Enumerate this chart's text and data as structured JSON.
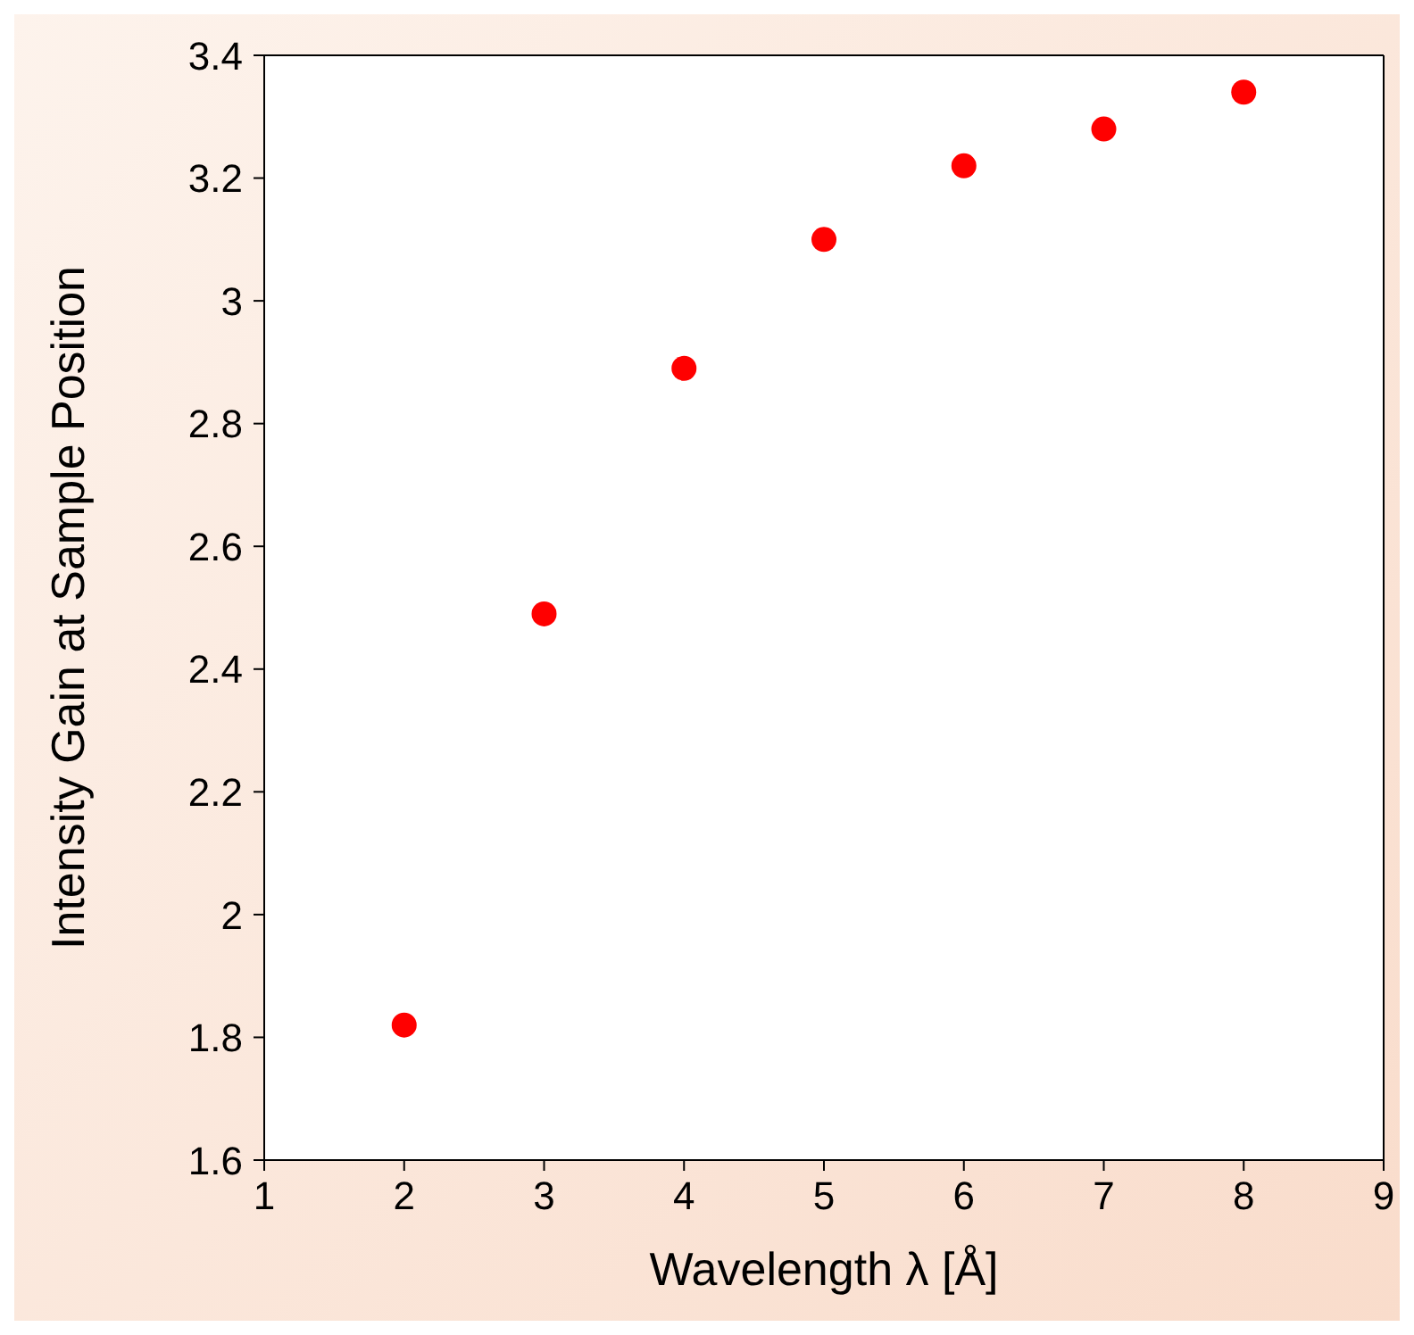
{
  "chart_data": {
    "type": "scatter",
    "xlabel": "Wavelength λ [Å]",
    "ylabel": "Intensity Gain at Sample Position",
    "x": [
      2,
      3,
      4,
      5,
      6,
      7,
      8
    ],
    "series": [
      {
        "color": "#ff0000",
        "values": [
          1.82,
          2.49,
          2.89,
          3.1,
          3.22,
          3.28,
          3.34
        ]
      }
    ],
    "xlim": [
      1,
      9
    ],
    "xticks": [
      1,
      2,
      3,
      4,
      5,
      6,
      7,
      8,
      9
    ],
    "ylim": [
      1.6,
      3.4
    ],
    "yticks": [
      1.6,
      1.8,
      2,
      2.2,
      2.4,
      2.6,
      2.8,
      3,
      3.2,
      3.4
    ],
    "marker": "circle"
  }
}
